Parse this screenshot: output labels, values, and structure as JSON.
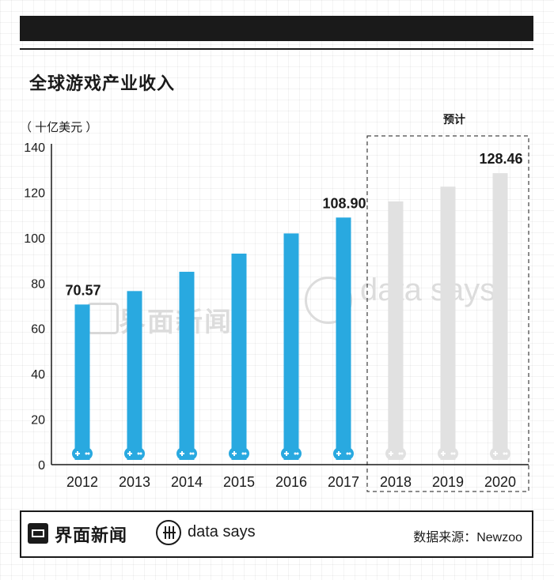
{
  "title": "全球游戏产业收入",
  "unit_label": "（ 十亿美元 ）",
  "forecast_label": "预计",
  "watermark": {
    "brand": "界面新闻",
    "tagline": "data says"
  },
  "footer": {
    "brand": "界面新闻",
    "tagline": "data says",
    "source": "数据来源：Newzoo"
  },
  "colors": {
    "actual": "#29a9e0",
    "forecast": "#e1e1e1",
    "text": "#1a1a1a"
  },
  "chart_data": {
    "type": "bar",
    "categories": [
      "2012",
      "2013",
      "2014",
      "2015",
      "2016",
      "2017",
      "2018",
      "2019",
      "2020"
    ],
    "values": [
      70.57,
      76.5,
      85.0,
      93.0,
      101.9,
      108.9,
      116.0,
      122.5,
      128.46
    ],
    "forecast_from_index": 6,
    "labeled_points": [
      {
        "index": 0,
        "label": "70.57"
      },
      {
        "index": 5,
        "label": "108.90"
      },
      {
        "index": 8,
        "label": "128.46"
      }
    ],
    "y_ticks": [
      "0",
      "20",
      "40",
      "60",
      "80",
      "100",
      "120",
      "140"
    ],
    "ylim": [
      0,
      140
    ],
    "grid": false,
    "bar_icon": "gamepad-icon"
  }
}
